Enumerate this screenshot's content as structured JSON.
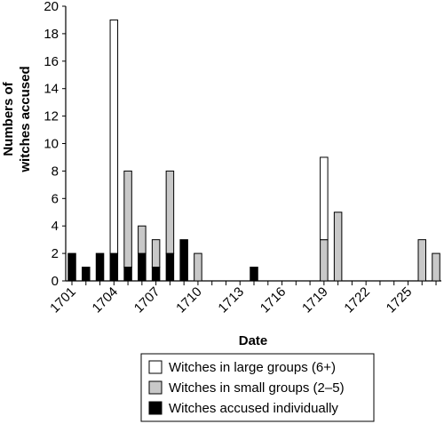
{
  "chart_data": {
    "type": "bar",
    "stacked": true,
    "xlabel": "Date",
    "ylabel_lines": [
      "Numbers of",
      "witches accused"
    ],
    "ylim": [
      0,
      20
    ],
    "y_ticks": [
      0,
      2,
      4,
      6,
      8,
      10,
      12,
      14,
      16,
      18,
      20
    ],
    "x_tick_labels": [
      "1701",
      "1704",
      "1707",
      "1710",
      "1713",
      "1716",
      "1719",
      "1722",
      "1725"
    ],
    "years": [
      1701,
      1702,
      1703,
      1704,
      1705,
      1706,
      1707,
      1708,
      1709,
      1710,
      1711,
      1712,
      1713,
      1714,
      1715,
      1716,
      1717,
      1718,
      1719,
      1720,
      1721,
      1722,
      1723,
      1724,
      1725,
      1726,
      1727
    ],
    "series": [
      {
        "name": "Witches accused individually",
        "color": "#000000",
        "values": [
          2,
          1,
          2,
          2,
          1,
          2,
          1,
          2,
          3,
          0,
          0,
          0,
          0,
          1,
          0,
          0,
          0,
          0,
          0,
          0,
          0,
          0,
          0,
          0,
          0,
          0,
          0
        ]
      },
      {
        "name": "Witches in small groups (2–5)",
        "color": "#c8c8c8",
        "values": [
          0,
          0,
          0,
          0,
          7,
          2,
          2,
          6,
          0,
          2,
          0,
          0,
          0,
          0,
          0,
          0,
          0,
          0,
          3,
          5,
          0,
          0,
          0,
          0,
          0,
          3,
          2
        ]
      },
      {
        "name": "Witches in large groups (6+)",
        "color": "#ffffff",
        "values": [
          0,
          0,
          0,
          17,
          0,
          0,
          0,
          0,
          0,
          0,
          0,
          0,
          0,
          0,
          0,
          0,
          0,
          0,
          6,
          0,
          0,
          0,
          0,
          0,
          0,
          0,
          0
        ]
      }
    ],
    "legend_order": [
      2,
      1,
      0
    ],
    "legend_position": "bottom-right",
    "grid": false
  }
}
